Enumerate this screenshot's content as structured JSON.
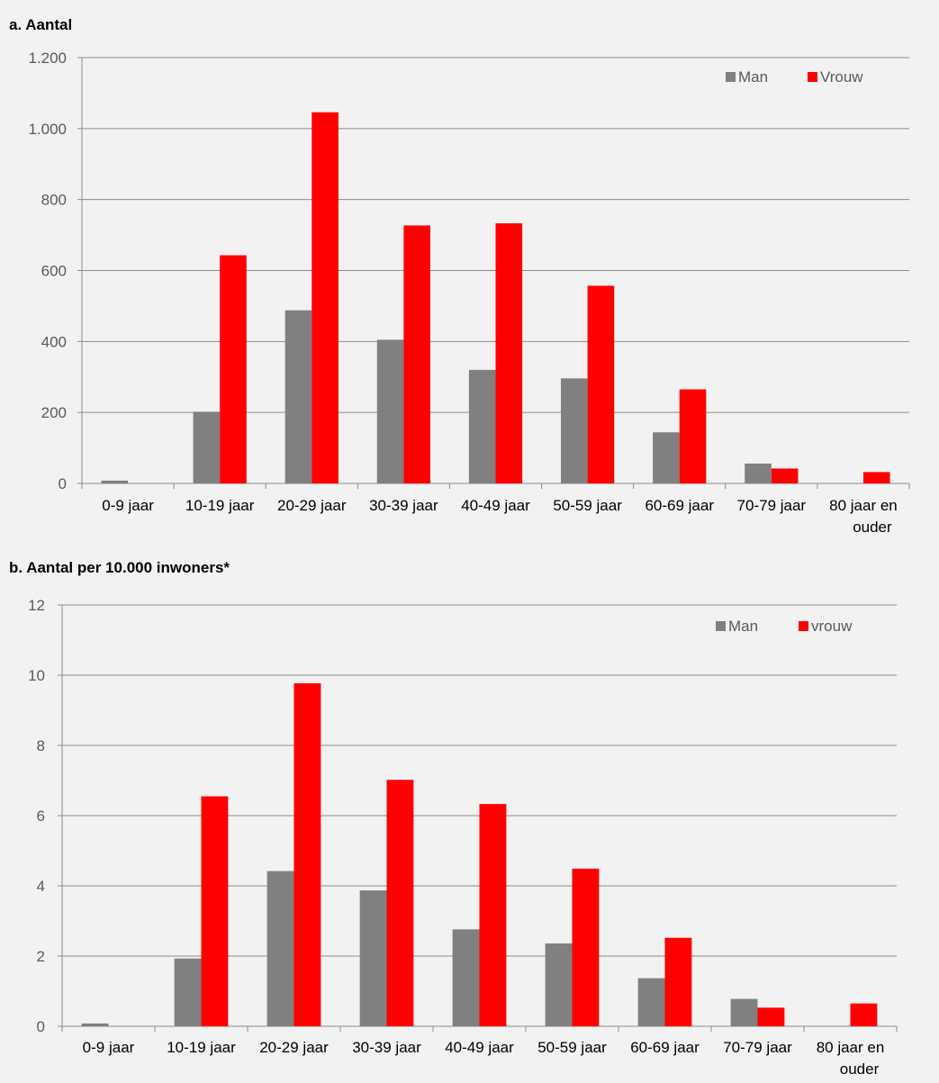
{
  "colors": {
    "man": "#808080",
    "vrouw": "#ff0000",
    "grid": "#8c8c8c",
    "axis": "#8c8c8c"
  },
  "chart_data": [
    {
      "type": "bar",
      "title": "a. Aantal",
      "xlabel": "",
      "ylabel": "",
      "categories": [
        "0-9 jaar",
        "10-19 jaar",
        "20-29 jaar",
        "30-39 jaar",
        "40-49 jaar",
        "50-59 jaar",
        "60-69 jaar",
        "70-79 jaar",
        "80 jaar en ouder"
      ],
      "category_lines": [
        [
          "0-9 jaar"
        ],
        [
          "10-19 jaar"
        ],
        [
          "20-29 jaar"
        ],
        [
          "30-39 jaar"
        ],
        [
          "40-49 jaar"
        ],
        [
          "50-59 jaar"
        ],
        [
          "60-69 jaar"
        ],
        [
          "70-79 jaar"
        ],
        [
          "80 jaar en",
          "ouder"
        ]
      ],
      "ylim": [
        0,
        1200
      ],
      "yticks": [
        0,
        200,
        400,
        600,
        800,
        1000,
        1200
      ],
      "ytick_labels": [
        "0",
        "200",
        "400",
        "600",
        "800",
        "1.000",
        "1.200"
      ],
      "grid": true,
      "legend": "top-right",
      "series": [
        {
          "name": "Man",
          "color_key": "man",
          "values": [
            8,
            202,
            488,
            405,
            320,
            296,
            144,
            56,
            0
          ]
        },
        {
          "name": "Vrouw",
          "color_key": "vrouw",
          "values": [
            0,
            643,
            1046,
            727,
            733,
            557,
            265,
            42,
            32
          ]
        }
      ]
    },
    {
      "type": "bar",
      "title": "b. Aantal per 10.000 inwoners*",
      "xlabel": "",
      "ylabel": "",
      "categories": [
        "0-9 jaar",
        "10-19 jaar",
        "20-29 jaar",
        "30-39 jaar",
        "40-49 jaar",
        "50-59 jaar",
        "60-69 jaar",
        "70-79 jaar",
        "80 jaar en ouder"
      ],
      "category_lines": [
        [
          "0-9 jaar"
        ],
        [
          "10-19 jaar"
        ],
        [
          "20-29 jaar"
        ],
        [
          "30-39 jaar"
        ],
        [
          "40-49 jaar"
        ],
        [
          "50-59 jaar"
        ],
        [
          "60-69 jaar"
        ],
        [
          "70-79 jaar"
        ],
        [
          "80 jaar en",
          "ouder"
        ]
      ],
      "ylim": [
        0,
        12
      ],
      "yticks": [
        0,
        2,
        4,
        6,
        8,
        10,
        12
      ],
      "ytick_labels": [
        "0",
        "2",
        "4",
        "6",
        "8",
        "10",
        "12"
      ],
      "grid": true,
      "legend": "top-right",
      "series": [
        {
          "name": "Man",
          "color_key": "man",
          "values": [
            0.08,
            1.93,
            4.42,
            3.87,
            2.76,
            2.36,
            1.37,
            0.78,
            0
          ]
        },
        {
          "name": "vrouw",
          "color_key": "vrouw",
          "values": [
            0,
            6.55,
            9.77,
            7.02,
            6.33,
            4.49,
            2.52,
            0.53,
            0.65
          ]
        }
      ]
    }
  ]
}
